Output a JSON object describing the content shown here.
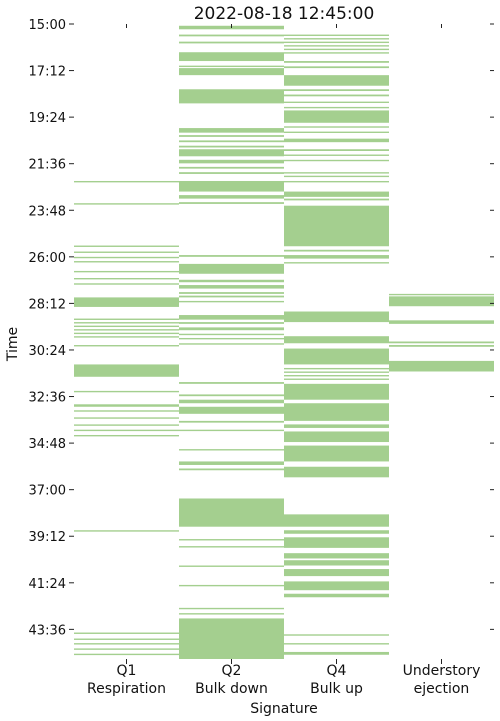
{
  "chart_data": {
    "type": "heatmap",
    "title": "2022-08-18 12:45:00",
    "xlabel": "Signature",
    "ylabel": "Time",
    "color": "#a4cf8f",
    "categories": [
      {
        "line1": "Q1",
        "line2": "Respiration"
      },
      {
        "line1": "Q2",
        "line2": "Bulk down"
      },
      {
        "line1": "Q4",
        "line2": "Bulk up"
      },
      {
        "line1": "Understory",
        "line2": "ejection"
      }
    ],
    "y_unit": "minutes:seconds",
    "y_range": [
      "15:00",
      "45:00"
    ],
    "y_ticks": [
      "15:00",
      "17:12",
      "19:24",
      "21:36",
      "23:48",
      "26:00",
      "28:12",
      "30:24",
      "32:36",
      "34:48",
      "37:00",
      "39:12",
      "41:24",
      "43:36"
    ],
    "grid": false,
    "bands": [
      [
        [
          "22:25",
          "22:27"
        ],
        [
          "23:28",
          "23:30"
        ],
        [
          "25:28",
          "25:32"
        ],
        [
          "25:45",
          "25:48"
        ],
        [
          "26:00",
          "26:03"
        ],
        [
          "26:12",
          "26:15"
        ],
        [
          "26:40",
          "26:42"
        ],
        [
          "27:00",
          "27:03"
        ],
        [
          "27:15",
          "27:18"
        ],
        [
          "27:55",
          "28:22"
        ],
        [
          "28:55",
          "28:58"
        ],
        [
          "29:05",
          "29:08"
        ],
        [
          "29:15",
          "29:18"
        ],
        [
          "29:25",
          "29:28"
        ],
        [
          "29:35",
          "29:38"
        ],
        [
          "29:45",
          "29:48"
        ],
        [
          "30:10",
          "30:13"
        ],
        [
          "31:05",
          "31:40"
        ],
        [
          "32:20",
          "32:22"
        ],
        [
          "32:58",
          "33:05"
        ],
        [
          "33:15",
          "33:18"
        ],
        [
          "33:35",
          "33:38"
        ],
        [
          "33:55",
          "33:58"
        ],
        [
          "34:10",
          "34:13"
        ],
        [
          "34:25",
          "34:28"
        ],
        [
          "38:55",
          "38:58"
        ],
        [
          "43:45",
          "43:47"
        ],
        [
          "44:02",
          "44:05"
        ],
        [
          "44:15",
          "44:18"
        ],
        [
          "44:30",
          "44:33"
        ],
        [
          "44:45",
          "44:48"
        ]
      ],
      [
        [
          "15:05",
          "15:15"
        ],
        [
          "15:30",
          "15:35"
        ],
        [
          "15:50",
          "15:55"
        ],
        [
          "16:20",
          "16:45"
        ],
        [
          "16:58",
          "17:02"
        ],
        [
          "17:05",
          "17:25"
        ],
        [
          "18:05",
          "18:45"
        ],
        [
          "19:55",
          "20:08"
        ],
        [
          "20:15",
          "20:20"
        ],
        [
          "20:30",
          "20:35"
        ],
        [
          "20:45",
          "20:50"
        ],
        [
          "20:55",
          "21:15"
        ],
        [
          "21:25",
          "21:35"
        ],
        [
          "21:45",
          "21:50"
        ],
        [
          "22:00",
          "22:05"
        ],
        [
          "22:25",
          "22:55"
        ],
        [
          "23:05",
          "23:15"
        ],
        [
          "23:25",
          "23:30"
        ],
        [
          "25:55",
          "26:00"
        ],
        [
          "26:20",
          "26:48"
        ],
        [
          "27:05",
          "27:12"
        ],
        [
          "27:20",
          "27:30"
        ],
        [
          "27:40",
          "27:45"
        ],
        [
          "27:50",
          "27:55"
        ],
        [
          "28:05",
          "28:08"
        ],
        [
          "28:45",
          "28:58"
        ],
        [
          "29:05",
          "29:10"
        ],
        [
          "29:20",
          "29:28"
        ],
        [
          "29:38",
          "29:42"
        ],
        [
          "29:50",
          "29:53"
        ],
        [
          "30:05",
          "30:08"
        ],
        [
          "31:55",
          "32:00"
        ],
        [
          "32:30",
          "32:35"
        ],
        [
          "32:45",
          "32:55"
        ],
        [
          "33:05",
          "33:25"
        ],
        [
          "33:45",
          "33:50"
        ],
        [
          "34:10",
          "34:13"
        ],
        [
          "35:05",
          "35:08"
        ],
        [
          "35:40",
          "35:50"
        ],
        [
          "36:00",
          "36:05"
        ],
        [
          "37:25",
          "38:45"
        ],
        [
          "39:20",
          "39:24"
        ],
        [
          "39:40",
          "39:43"
        ],
        [
          "40:35",
          "40:38"
        ],
        [
          "41:30",
          "41:33"
        ],
        [
          "42:35",
          "42:38"
        ],
        [
          "42:50",
          "42:53"
        ],
        [
          "43:05",
          "45:00"
        ]
      ],
      [
        [
          "15:30",
          "15:33"
        ],
        [
          "15:40",
          "15:43"
        ],
        [
          "15:50",
          "15:53"
        ],
        [
          "16:00",
          "16:03"
        ],
        [
          "16:10",
          "16:13"
        ],
        [
          "16:20",
          "16:23"
        ],
        [
          "16:45",
          "16:50"
        ],
        [
          "17:00",
          "17:05"
        ],
        [
          "17:25",
          "17:55"
        ],
        [
          "18:05",
          "18:10"
        ],
        [
          "18:20",
          "18:25"
        ],
        [
          "18:40",
          "18:42"
        ],
        [
          "18:55",
          "18:58"
        ],
        [
          "19:05",
          "19:40"
        ],
        [
          "19:50",
          "19:53"
        ],
        [
          "20:05",
          "20:08"
        ],
        [
          "20:25",
          "20:35"
        ],
        [
          "20:55",
          "21:00"
        ],
        [
          "21:10",
          "21:13"
        ],
        [
          "21:25",
          "21:28"
        ],
        [
          "22:00",
          "22:03"
        ],
        [
          "22:10",
          "22:13"
        ],
        [
          "22:25",
          "22:28"
        ],
        [
          "22:55",
          "23:10"
        ],
        [
          "23:15",
          "23:20"
        ],
        [
          "23:35",
          "25:30"
        ],
        [
          "25:40",
          "25:45"
        ],
        [
          "25:55",
          "26:05"
        ],
        [
          "26:15",
          "26:18"
        ],
        [
          "28:35",
          "29:05"
        ],
        [
          "29:45",
          "30:05"
        ],
        [
          "30:20",
          "31:05"
        ],
        [
          "31:15",
          "31:18"
        ],
        [
          "31:25",
          "31:28"
        ],
        [
          "31:35",
          "31:38"
        ],
        [
          "31:45",
          "31:48"
        ],
        [
          "32:00",
          "32:45"
        ],
        [
          "32:55",
          "33:45"
        ],
        [
          "33:55",
          "34:05"
        ],
        [
          "34:15",
          "34:45"
        ],
        [
          "34:55",
          "35:40"
        ],
        [
          "35:55",
          "36:25"
        ],
        [
          "38:10",
          "38:45"
        ],
        [
          "38:55",
          "39:05"
        ],
        [
          "39:15",
          "39:45"
        ],
        [
          "40:00",
          "40:15"
        ],
        [
          "40:20",
          "40:35"
        ],
        [
          "40:45",
          "41:05"
        ],
        [
          "41:20",
          "41:45"
        ],
        [
          "41:55",
          "42:05"
        ],
        [
          "43:50",
          "43:53"
        ],
        [
          "44:15",
          "44:18"
        ],
        [
          "44:40",
          "44:48"
        ]
      ],
      [
        [
          "27:45",
          "27:48"
        ],
        [
          "27:52",
          "28:20"
        ],
        [
          "29:00",
          "29:10"
        ],
        [
          "30:00",
          "30:05"
        ],
        [
          "30:10",
          "30:15"
        ],
        [
          "30:55",
          "31:25"
        ]
      ]
    ]
  }
}
